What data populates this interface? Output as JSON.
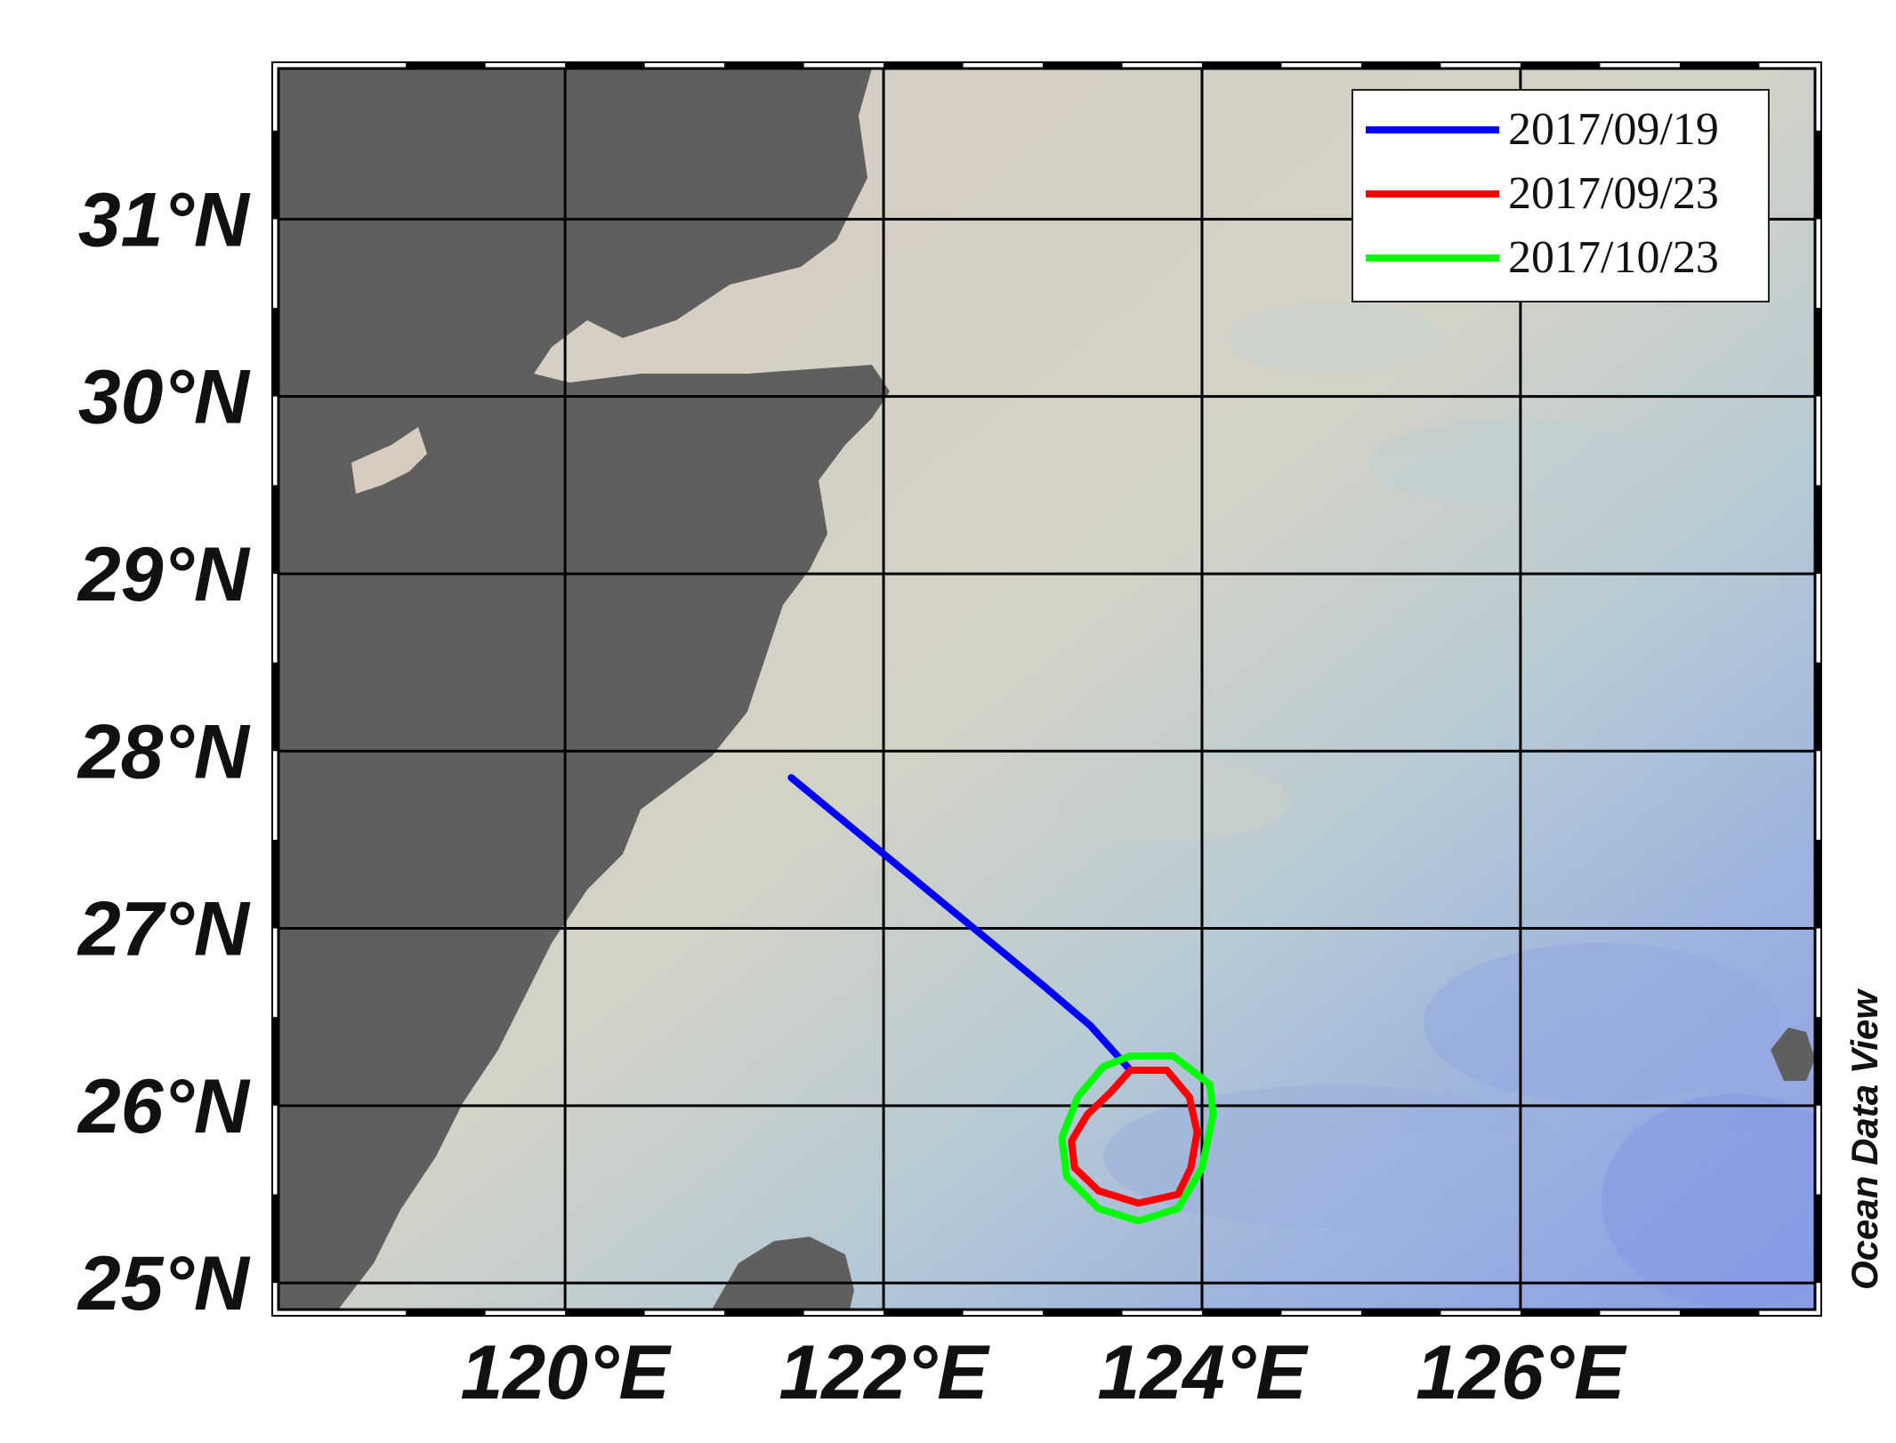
{
  "map": {
    "lon_range": [
      118.2,
      127.85
    ],
    "lat_range": [
      24.85,
      31.85
    ],
    "lon_ticks": [
      {
        "value": 120,
        "label": "120°E"
      },
      {
        "value": 122,
        "label": "122°E"
      },
      {
        "value": 124,
        "label": "124°E"
      },
      {
        "value": 126,
        "label": "126°E"
      }
    ],
    "lat_ticks": [
      {
        "value": 25,
        "label": "25°N"
      },
      {
        "value": 26,
        "label": "26°N"
      },
      {
        "value": 27,
        "label": "27°N"
      },
      {
        "value": 28,
        "label": "28°N"
      },
      {
        "value": 29,
        "label": "29°N"
      },
      {
        "value": 30,
        "label": "30°N"
      },
      {
        "value": 31,
        "label": "31°N"
      }
    ],
    "credit": "Ocean Data View",
    "colors": {
      "land": "#5f5f5f",
      "shelf": "#d8ccc0",
      "mid_shelf": "#cfd4c8",
      "slope": "#a9c0d6",
      "deep": "#8fa2e3",
      "grid": "#000000"
    }
  },
  "legend": {
    "items": [
      {
        "label": "2017/09/19",
        "color": "#0000ff"
      },
      {
        "label": "2017/09/23",
        "color": "#ff0000"
      },
      {
        "label": "2017/10/23",
        "color": "#00ff00"
      }
    ]
  },
  "tracks": [
    {
      "date": "2017/09/19",
      "color": "#0000ff",
      "points": [
        [
          121.42,
          27.85
        ],
        [
          122.0,
          27.42
        ],
        [
          122.5,
          27.05
        ],
        [
          123.0,
          26.68
        ],
        [
          123.3,
          26.45
        ],
        [
          123.55,
          26.2
        ]
      ]
    },
    {
      "date": "2017/09/23",
      "color": "#ff0000",
      "points": [
        [
          123.55,
          26.2
        ],
        [
          123.78,
          26.2
        ],
        [
          123.92,
          26.05
        ],
        [
          123.97,
          25.85
        ],
        [
          123.93,
          25.65
        ],
        [
          123.85,
          25.5
        ],
        [
          123.6,
          25.45
        ],
        [
          123.35,
          25.52
        ],
        [
          123.2,
          25.65
        ],
        [
          123.18,
          25.8
        ],
        [
          123.28,
          25.95
        ],
        [
          123.42,
          26.07
        ],
        [
          123.55,
          26.2
        ]
      ]
    },
    {
      "date": "2017/10/23",
      "color": "#00ff00",
      "points": [
        [
          123.55,
          26.28
        ],
        [
          123.82,
          26.28
        ],
        [
          124.05,
          26.12
        ],
        [
          124.07,
          25.95
        ],
        [
          124.0,
          25.65
        ],
        [
          123.85,
          25.42
        ],
        [
          123.6,
          25.35
        ],
        [
          123.35,
          25.42
        ],
        [
          123.15,
          25.6
        ],
        [
          123.12,
          25.82
        ],
        [
          123.22,
          26.05
        ],
        [
          123.38,
          26.22
        ],
        [
          123.55,
          26.28
        ]
      ]
    }
  ]
}
